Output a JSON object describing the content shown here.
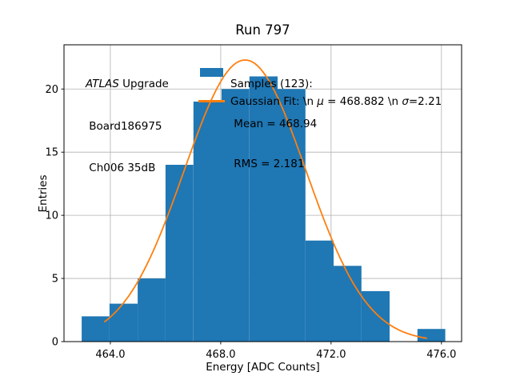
{
  "annotations": {
    "atlas": "ATLAS",
    "atlas_rest": " Upgrade",
    "board": " Board186975",
    "channel": " Ch006 35dB"
  },
  "legend": {
    "samples_title": "Samples (123):",
    "samples_mean": " Mean = 468.94",
    "samples_rms": " RMS = 2.181",
    "gaussian": {
      "p1": "Gaussian Fit: \\n ",
      "mu": "μ",
      "p2": " = 468.882 \\n ",
      "sigma": "σ",
      "p3": "=2.21"
    }
  },
  "chart_data": {
    "type": "bar",
    "subtype": "histogram",
    "title": "Run 797",
    "xlabel": "Energy [ADC Counts]",
    "ylabel": "Entries",
    "bin_edges": [
      462.96,
      463.97,
      464.99,
      466.0,
      467.01,
      468.03,
      469.04,
      470.06,
      471.07,
      472.09,
      473.1,
      474.12,
      475.13,
      476.14
    ],
    "counts": [
      2,
      3,
      5,
      14,
      19,
      20,
      21,
      20,
      8,
      6,
      4,
      0,
      1
    ],
    "total_samples": 123,
    "stats": {
      "mean": 468.94,
      "rms": 2.181
    },
    "fit": {
      "type": "gaussian",
      "mu": 468.882,
      "sigma": 2.21,
      "amplitude": 22.3,
      "x_start": 463.8,
      "x_end": 475.45
    },
    "xlim": [
      462.32,
      476.73
    ],
    "ylim": [
      0,
      23.5
    ],
    "xticks": [
      464.0,
      468.0,
      472.0,
      476.0
    ],
    "xtick_labels": [
      "464.0",
      "468.0",
      "472.0",
      "476.0"
    ],
    "yticks": [
      0,
      5,
      10,
      15,
      20
    ],
    "ytick_labels": [
      "0",
      "5",
      "10",
      "15",
      "20"
    ],
    "grid": true,
    "legend_position": "upper center, frameless",
    "colors": {
      "bars": "#1f77b4",
      "fit_line": "#ff7f0e",
      "grid": "#b0b0b0",
      "axes": "#000000"
    }
  }
}
